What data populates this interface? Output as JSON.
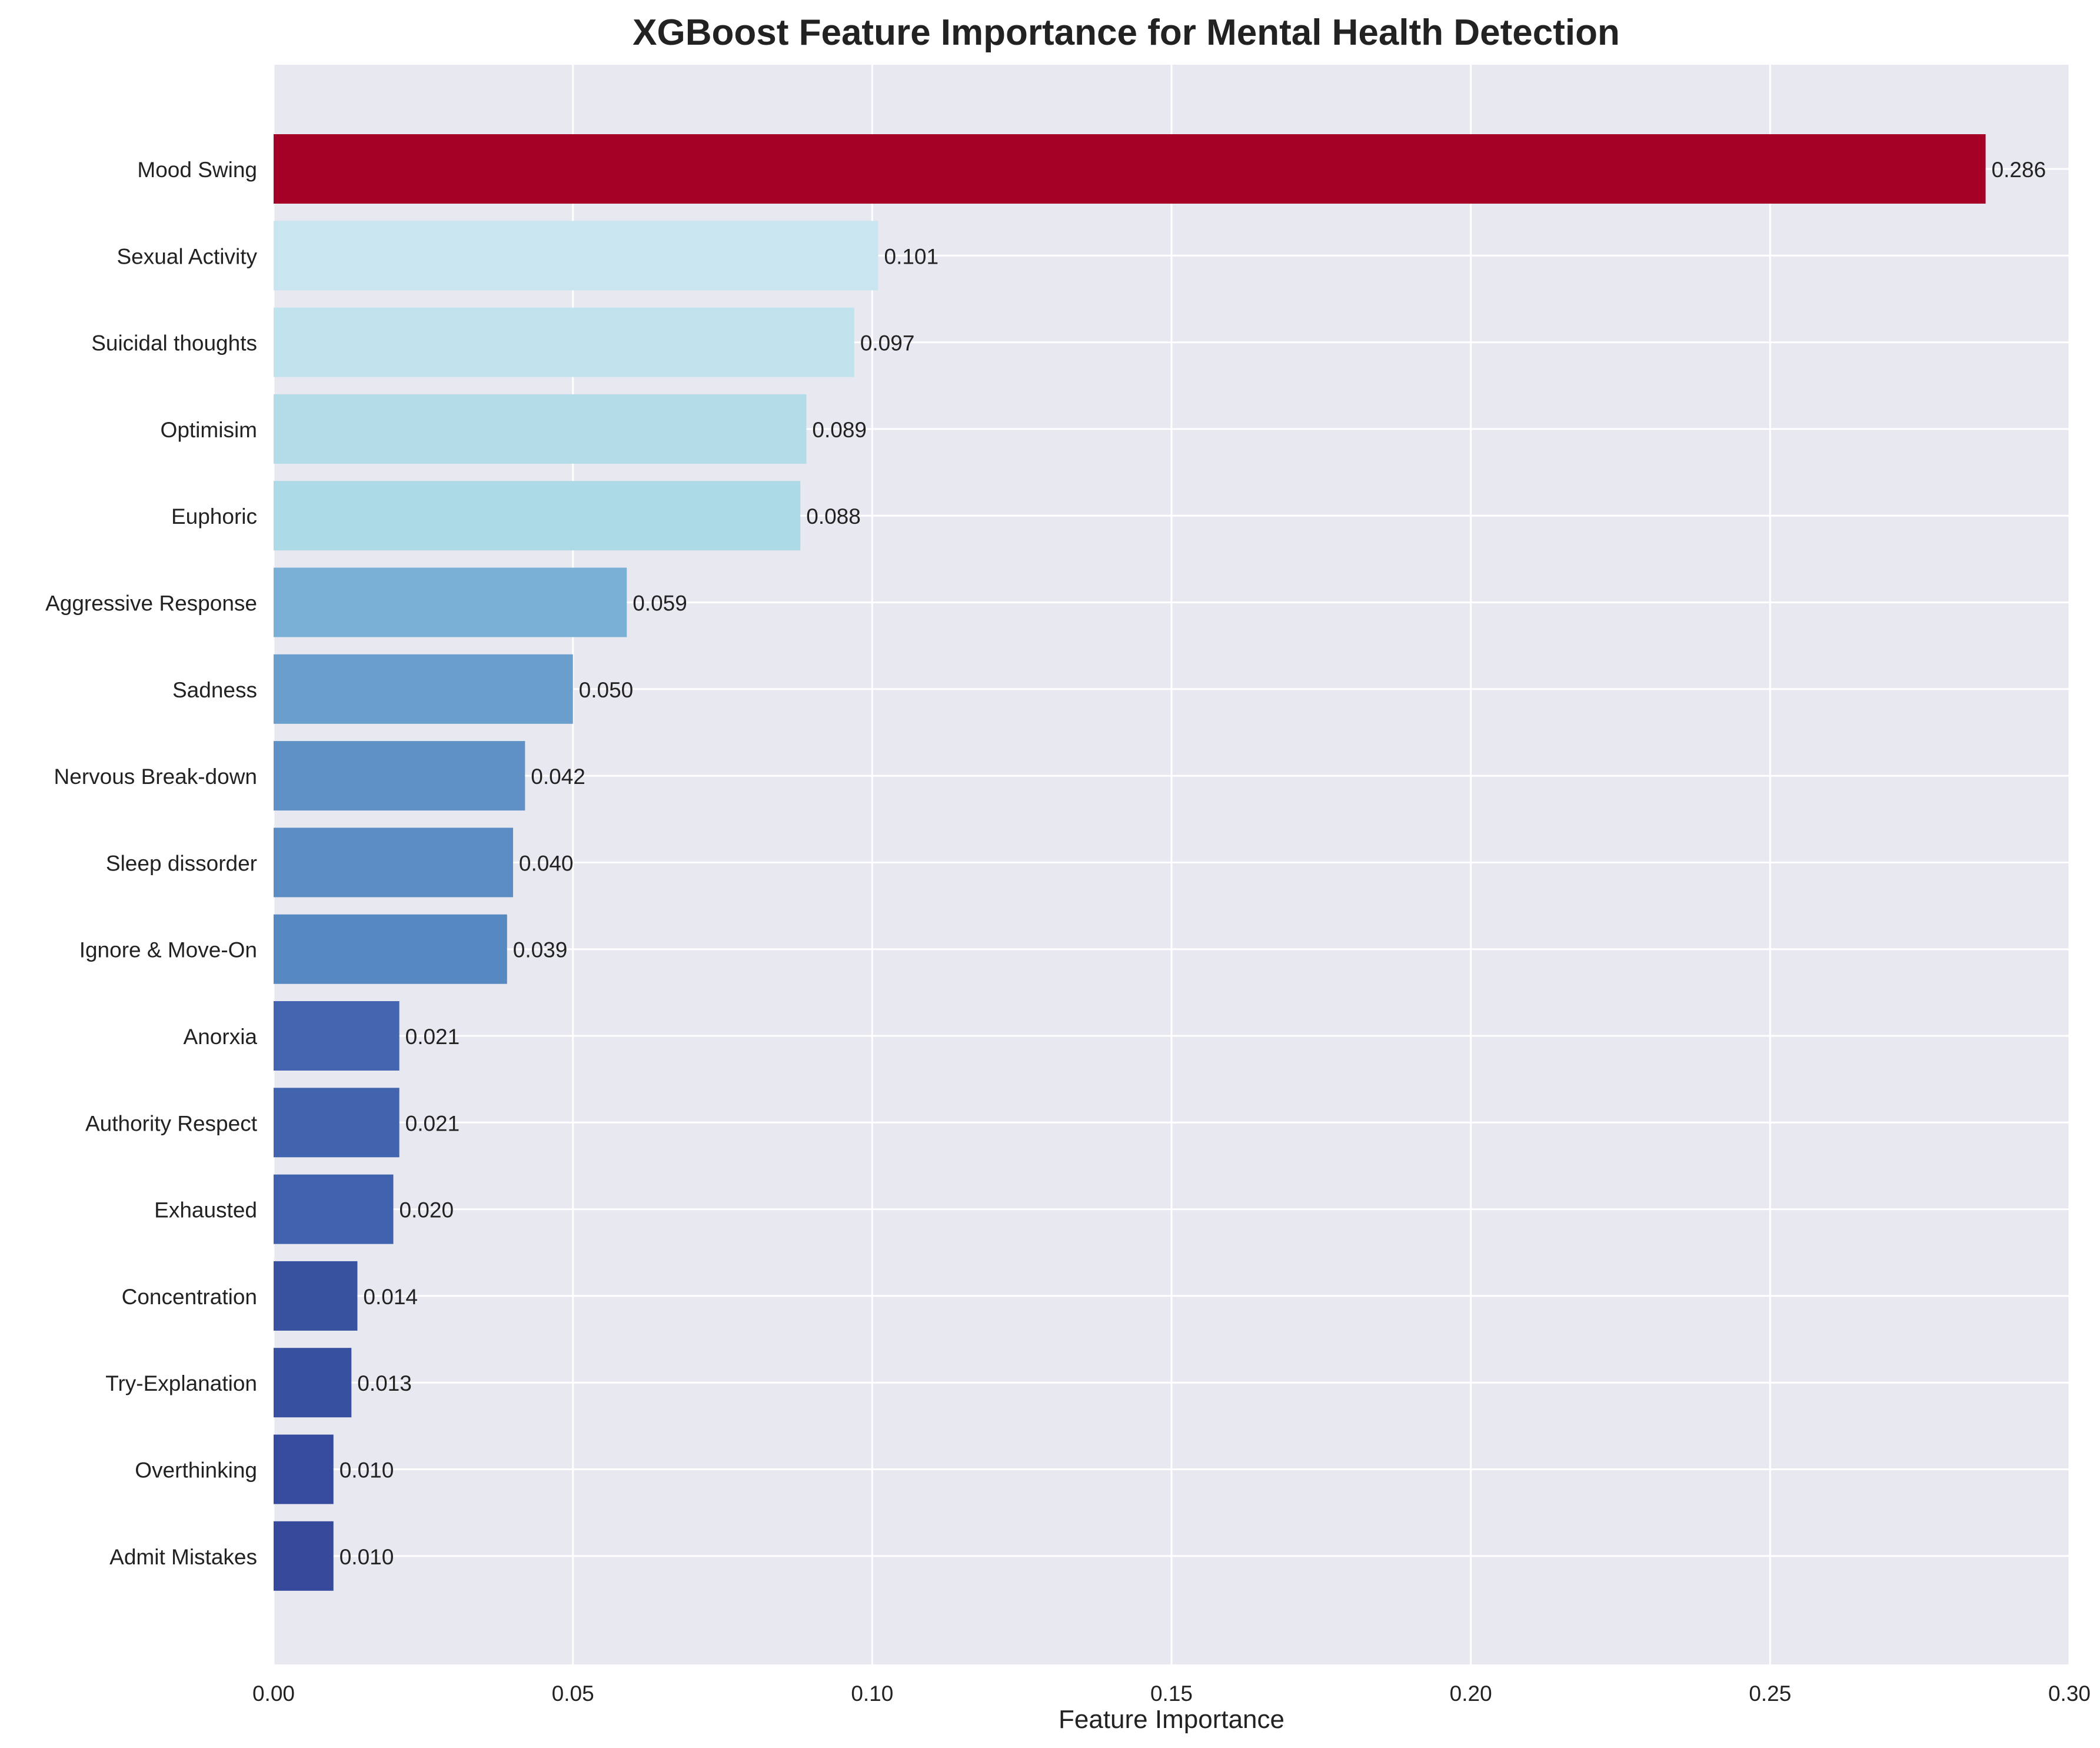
{
  "chart_data": {
    "type": "bar",
    "orientation": "horizontal",
    "title": "XGBoost Feature Importance for Mental Health Detection",
    "xlabel": "Feature Importance",
    "ylabel": "",
    "xlim": [
      0,
      0.3
    ],
    "xticks": [
      0.0,
      0.05,
      0.1,
      0.15,
      0.2,
      0.25,
      0.3
    ],
    "xtick_labels": [
      "0.00",
      "0.05",
      "0.10",
      "0.15",
      "0.20",
      "0.25",
      "0.30"
    ],
    "grid": true,
    "background": "#e8e8f0",
    "categories": [
      "Mood Swing",
      "Sexual Activity",
      "Suicidal thoughts",
      "Optimisim",
      "Euphoric",
      "Aggressive Response",
      "Sadness",
      "Nervous Break-down",
      "Sleep dissorder",
      "Ignore & Move-On",
      "Anorxia",
      "Authority Respect",
      "Exhausted",
      "Concentration",
      "Try-Explanation",
      "Overthinking",
      "Admit Mistakes"
    ],
    "values": [
      0.286,
      0.101,
      0.097,
      0.089,
      0.088,
      0.059,
      0.05,
      0.042,
      0.04,
      0.039,
      0.021,
      0.021,
      0.02,
      0.014,
      0.013,
      0.01,
      0.01
    ],
    "value_labels": [
      "0.286",
      "0.101",
      "0.097",
      "0.089",
      "0.088",
      "0.059",
      "0.050",
      "0.042",
      "0.040",
      "0.039",
      "0.021",
      "0.021",
      "0.020",
      "0.014",
      "0.013",
      "0.010",
      "0.010"
    ],
    "colors": [
      "#a50026",
      "#c9e6f0",
      "#c0e3ed",
      "#b3dce8",
      "#acdae7",
      "#7ab0d5",
      "#6a9fcd",
      "#5f91c6",
      "#5b8cc3",
      "#5688c1",
      "#4466b1",
      "#4263ae",
      "#4061ad",
      "#3852a0",
      "#37509f",
      "#364b9d",
      "#36499b"
    ]
  }
}
